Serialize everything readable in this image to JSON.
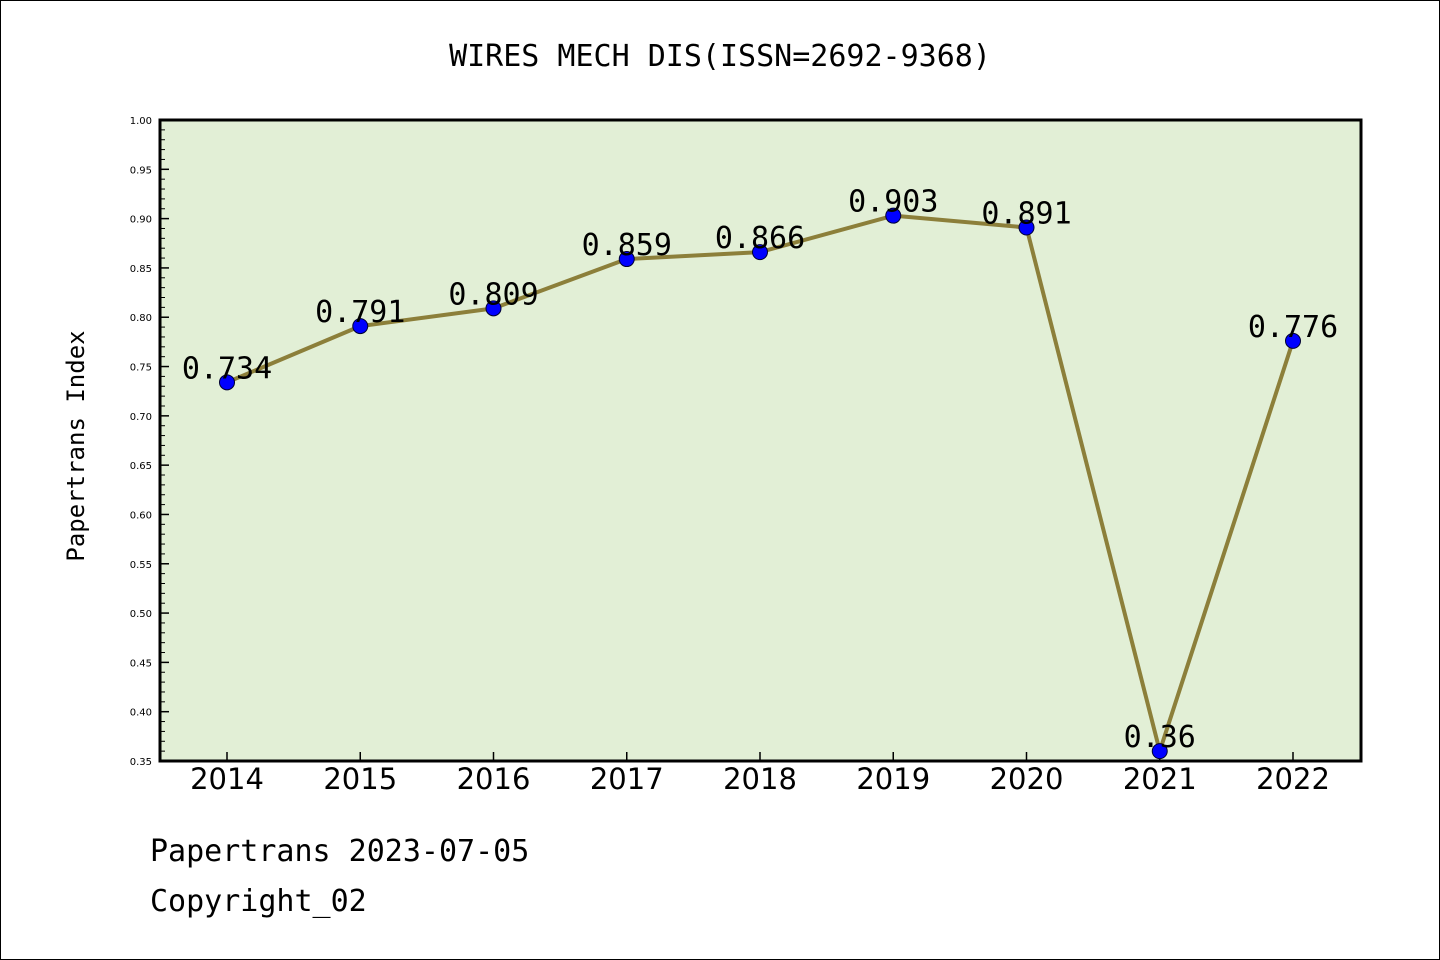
{
  "chart_data": {
    "type": "line",
    "title": "WIRES MECH DIS(ISSN=2692-9368)",
    "xlabel": "",
    "ylabel": "Papertrans Index",
    "categories": [
      "2014",
      "2015",
      "2016",
      "2017",
      "2018",
      "2019",
      "2020",
      "2021",
      "2022"
    ],
    "values": [
      0.734,
      0.791,
      0.809,
      0.859,
      0.866,
      0.903,
      0.891,
      0.36,
      0.776
    ],
    "data_labels": [
      "0.734",
      "0.791",
      "0.809",
      "0.859",
      "0.866",
      "0.903",
      "0.891",
      "0.36",
      "0.776"
    ],
    "ylim": [
      0.35,
      1.0
    ],
    "yticks": [
      "0.35",
      "0.40",
      "0.45",
      "0.50",
      "0.55",
      "0.60",
      "0.65",
      "0.70",
      "0.75",
      "0.80",
      "0.85",
      "0.90",
      "0.95",
      "1.00"
    ],
    "grid": false,
    "legend": "none",
    "colors": {
      "plot_background": "#e2efd6",
      "line": "#8c7f3a",
      "marker": "#0000ff"
    }
  },
  "footer": {
    "source": "Papertrans 2023-07-05",
    "copyright": "Copyright_02"
  }
}
